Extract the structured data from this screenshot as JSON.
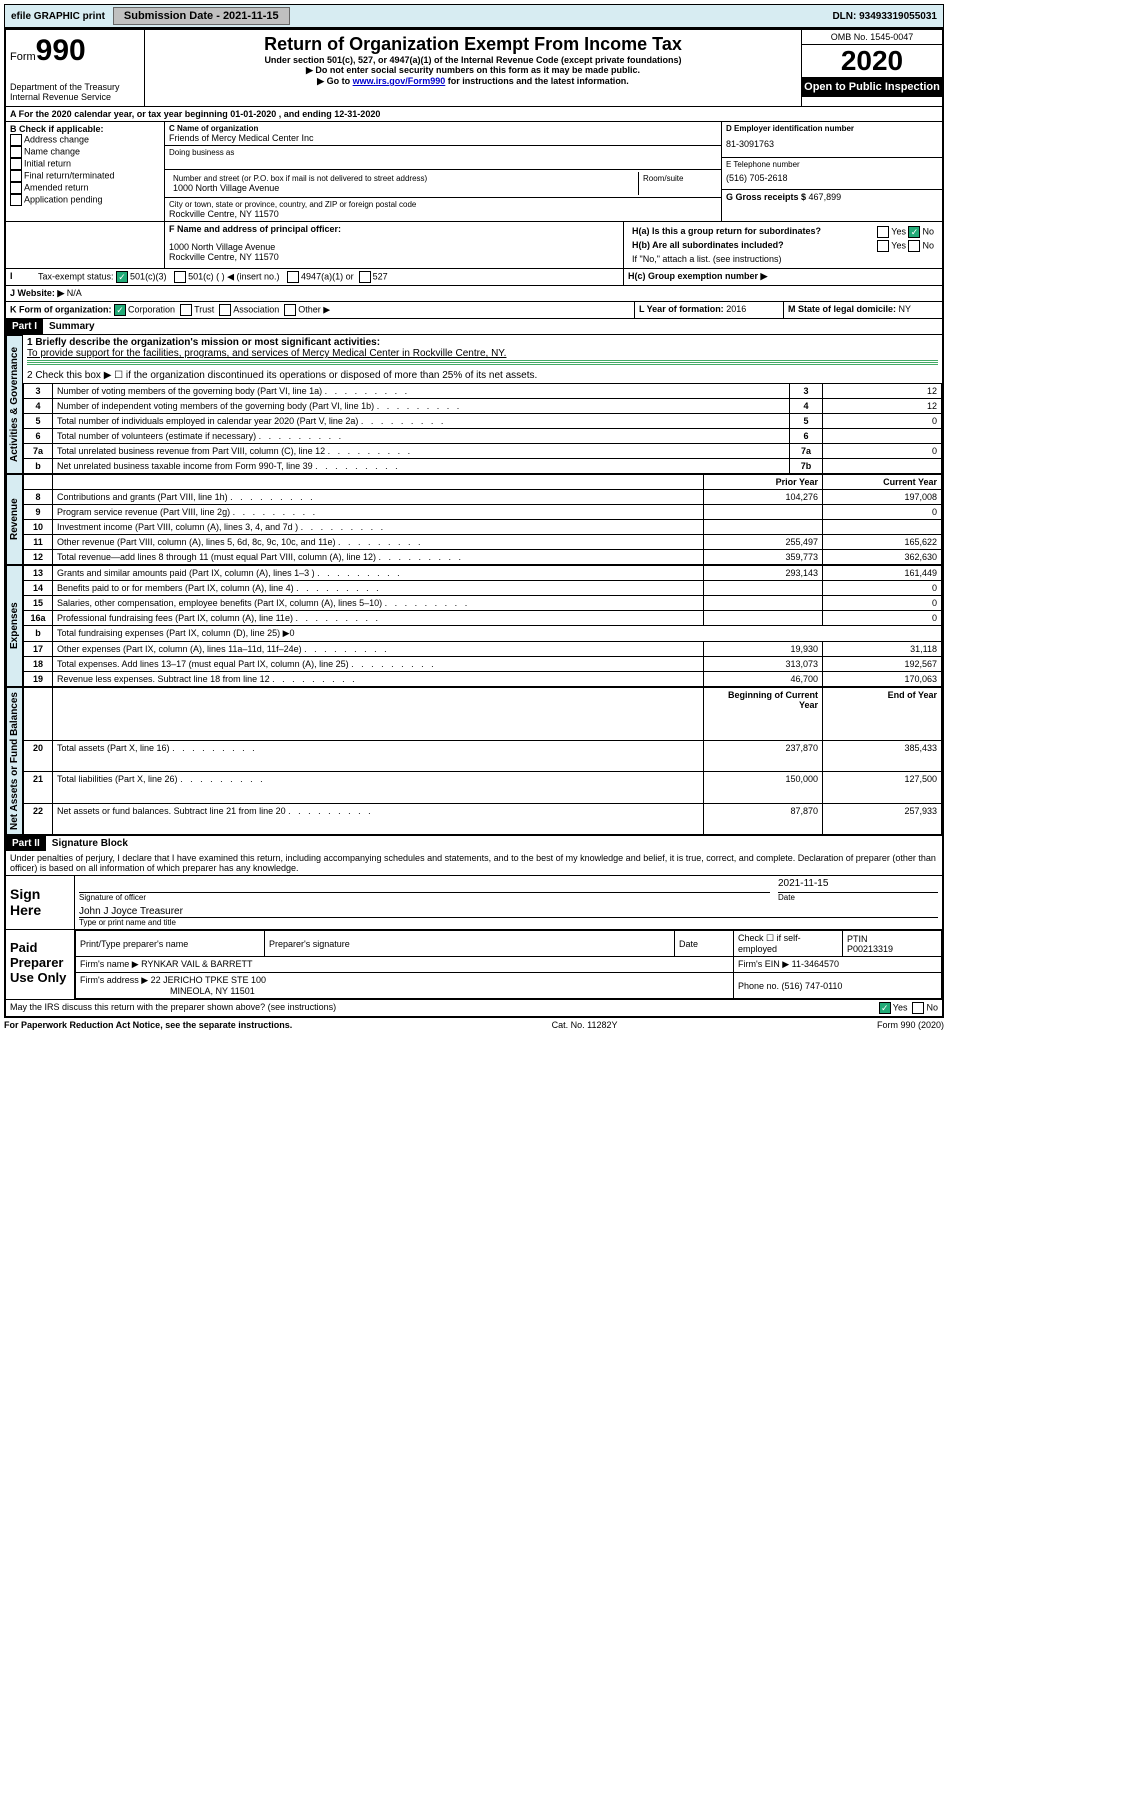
{
  "topbar": {
    "efile": "efile GRAPHIC print",
    "subdate_label": "Submission Date - ",
    "subdate": "2021-11-15",
    "dln_label": "DLN: ",
    "dln": "93493319055031"
  },
  "header": {
    "form_label": "Form",
    "form_num": "990",
    "dept": "Department of the Treasury\nInternal Revenue Service",
    "title": "Return of Organization Exempt From Income Tax",
    "sub1": "Under section 501(c), 527, or 4947(a)(1) of the Internal Revenue Code (except private foundations)",
    "sub2": "Do not enter social security numbers on this form as it may be made public.",
    "sub3_pre": "Go to ",
    "sub3_link": "www.irs.gov/Form990",
    "sub3_post": " for instructions and the latest information.",
    "omb": "OMB No. 1545-0047",
    "year": "2020",
    "public": "Open to Public Inspection"
  },
  "sectionA": {
    "text": "For the 2020 calendar year, or tax year beginning 01-01-2020   , and ending 12-31-2020"
  },
  "boxB": {
    "label": "B Check if applicable:",
    "items": [
      "Address change",
      "Name change",
      "Initial return",
      "Final return/terminated",
      "Amended return",
      "Application pending"
    ]
  },
  "boxC": {
    "name_label": "C Name of organization",
    "name": "Friends of Mercy Medical Center Inc",
    "dba_label": "Doing business as",
    "street_label": "Number and street (or P.O. box if mail is not delivered to street address)",
    "room_label": "Room/suite",
    "street": "1000 North Village Avenue",
    "city_label": "City or town, state or province, country, and ZIP or foreign postal code",
    "city": "Rockville Centre, NY  11570"
  },
  "boxD": {
    "label": "D Employer identification number",
    "value": "81-3091763"
  },
  "boxE": {
    "label": "E Telephone number",
    "value": "(516) 705-2618"
  },
  "boxG": {
    "label": "G Gross receipts $ ",
    "value": "467,899"
  },
  "boxF": {
    "label": "F  Name and address of principal officer:",
    "addr1": "1000 North Village Avenue",
    "addr2": "Rockville Centre, NY  11570"
  },
  "boxH": {
    "a": "H(a)  Is this a group return for subordinates?",
    "b": "H(b)  Are all subordinates included?",
    "note": "If \"No,\" attach a list. (see instructions)",
    "c": "H(c)  Group exemption number ▶",
    "yes": "Yes",
    "no": "No"
  },
  "taxexempt": {
    "label": "Tax-exempt status:",
    "opts": [
      "501(c)(3)",
      "501(c) (  ) ◀ (insert no.)",
      "4947(a)(1) or",
      "527"
    ],
    "i": "I"
  },
  "website": {
    "label": "J   Website: ▶",
    "value": "N/A"
  },
  "boxK": {
    "label": "K Form of organization:",
    "opts": [
      "Corporation",
      "Trust",
      "Association",
      "Other ▶"
    ]
  },
  "boxL": {
    "label": "L Year of formation: ",
    "value": "2016"
  },
  "boxM": {
    "label": "M State of legal domicile: ",
    "value": "NY"
  },
  "part1": {
    "header": "Part I",
    "title": "Summary",
    "line1_label": "1  Briefly describe the organization's mission or most significant activities:",
    "line1_text": "To provide support for the facilities, programs, and services of Mercy Medical Center in Rockville Centre, NY.",
    "line2": "2   Check this box ▶ ☐  if the organization discontinued its operations or disposed of more than 25% of its net assets.",
    "vtab_gov": "Activities & Governance",
    "vtab_rev": "Revenue",
    "vtab_exp": "Expenses",
    "vtab_net": "Net Assets or Fund Balances",
    "rows_gov": [
      {
        "n": "3",
        "t": "Number of voting members of the governing body (Part VI, line 1a)",
        "a": "3",
        "v": "12"
      },
      {
        "n": "4",
        "t": "Number of independent voting members of the governing body (Part VI, line 1b)",
        "a": "4",
        "v": "12"
      },
      {
        "n": "5",
        "t": "Total number of individuals employed in calendar year 2020 (Part V, line 2a)",
        "a": "5",
        "v": "0"
      },
      {
        "n": "6",
        "t": "Total number of volunteers (estimate if necessary)",
        "a": "6",
        "v": ""
      },
      {
        "n": "7a",
        "t": "Total unrelated business revenue from Part VIII, column (C), line 12",
        "a": "7a",
        "v": "0"
      },
      {
        "n": "b",
        "t": "Net unrelated business taxable income from Form 990-T, line 39",
        "a": "7b",
        "v": ""
      }
    ],
    "col_prior": "Prior Year",
    "col_current": "Current Year",
    "rows_rev": [
      {
        "n": "8",
        "t": "Contributions and grants (Part VIII, line 1h)",
        "p": "104,276",
        "c": "197,008"
      },
      {
        "n": "9",
        "t": "Program service revenue (Part VIII, line 2g)",
        "p": "",
        "c": "0"
      },
      {
        "n": "10",
        "t": "Investment income (Part VIII, column (A), lines 3, 4, and 7d )",
        "p": "",
        "c": ""
      },
      {
        "n": "11",
        "t": "Other revenue (Part VIII, column (A), lines 5, 6d, 8c, 9c, 10c, and 11e)",
        "p": "255,497",
        "c": "165,622"
      },
      {
        "n": "12",
        "t": "Total revenue—add lines 8 through 11 (must equal Part VIII, column (A), line 12)",
        "p": "359,773",
        "c": "362,630"
      }
    ],
    "rows_exp": [
      {
        "n": "13",
        "t": "Grants and similar amounts paid (Part IX, column (A), lines 1–3 )",
        "p": "293,143",
        "c": "161,449"
      },
      {
        "n": "14",
        "t": "Benefits paid to or for members (Part IX, column (A), line 4)",
        "p": "",
        "c": "0"
      },
      {
        "n": "15",
        "t": "Salaries, other compensation, employee benefits (Part IX, column (A), lines 5–10)",
        "p": "",
        "c": "0"
      },
      {
        "n": "16a",
        "t": "Professional fundraising fees (Part IX, column (A), line 11e)",
        "p": "",
        "c": "0"
      },
      {
        "n": "b",
        "t": "Total fundraising expenses (Part IX, column (D), line 25) ▶0",
        "p": null,
        "c": null
      },
      {
        "n": "17",
        "t": "Other expenses (Part IX, column (A), lines 11a–11d, 11f–24e)",
        "p": "19,930",
        "c": "31,118"
      },
      {
        "n": "18",
        "t": "Total expenses. Add lines 13–17 (must equal Part IX, column (A), line 25)",
        "p": "313,073",
        "c": "192,567"
      },
      {
        "n": "19",
        "t": "Revenue less expenses. Subtract line 18 from line 12",
        "p": "46,700",
        "c": "170,063"
      }
    ],
    "col_beg": "Beginning of Current Year",
    "col_end": "End of Year",
    "rows_net": [
      {
        "n": "20",
        "t": "Total assets (Part X, line 16)",
        "p": "237,870",
        "c": "385,433"
      },
      {
        "n": "21",
        "t": "Total liabilities (Part X, line 26)",
        "p": "150,000",
        "c": "127,500"
      },
      {
        "n": "22",
        "t": "Net assets or fund balances. Subtract line 21 from line 20",
        "p": "87,870",
        "c": "257,933"
      }
    ]
  },
  "part2": {
    "header": "Part II",
    "title": "Signature Block",
    "declaration": "Under penalties of perjury, I declare that I have examined this return, including accompanying schedules and statements, and to the best of my knowledge and belief, it is true, correct, and complete. Declaration of preparer (other than officer) is based on all information of which preparer has any knowledge."
  },
  "sign": {
    "label": "Sign Here",
    "sig_officer": "Signature of officer",
    "date": "Date",
    "date_val": "2021-11-15",
    "name": "John J Joyce Treasurer",
    "type_label": "Type or print name and title"
  },
  "paid": {
    "label": "Paid Preparer Use Only",
    "h1": "Print/Type preparer's name",
    "h2": "Preparer's signature",
    "h3": "Date",
    "h4": "Check ☐ if self-employed",
    "h5": "PTIN",
    "ptin": "P00213319",
    "firm_name_label": "Firm's name     ▶",
    "firm_name": "RYNKAR VAIL & BARRETT",
    "firm_ein_label": "Firm's EIN ▶",
    "firm_ein": "11-3464570",
    "firm_addr_label": "Firm's address ▶",
    "firm_addr1": "22 JERICHO TPKE STE 100",
    "firm_addr2": "MINEOLA, NY  11501",
    "phone_label": "Phone no. ",
    "phone": "(516) 747-0110"
  },
  "discuss": {
    "text": "May the IRS discuss this return with the preparer shown above? (see instructions)",
    "yes": "Yes",
    "no": "No"
  },
  "footer": {
    "left": "For Paperwork Reduction Act Notice, see the separate instructions.",
    "mid": "Cat. No. 11282Y",
    "right": "Form 990 (2020)"
  }
}
